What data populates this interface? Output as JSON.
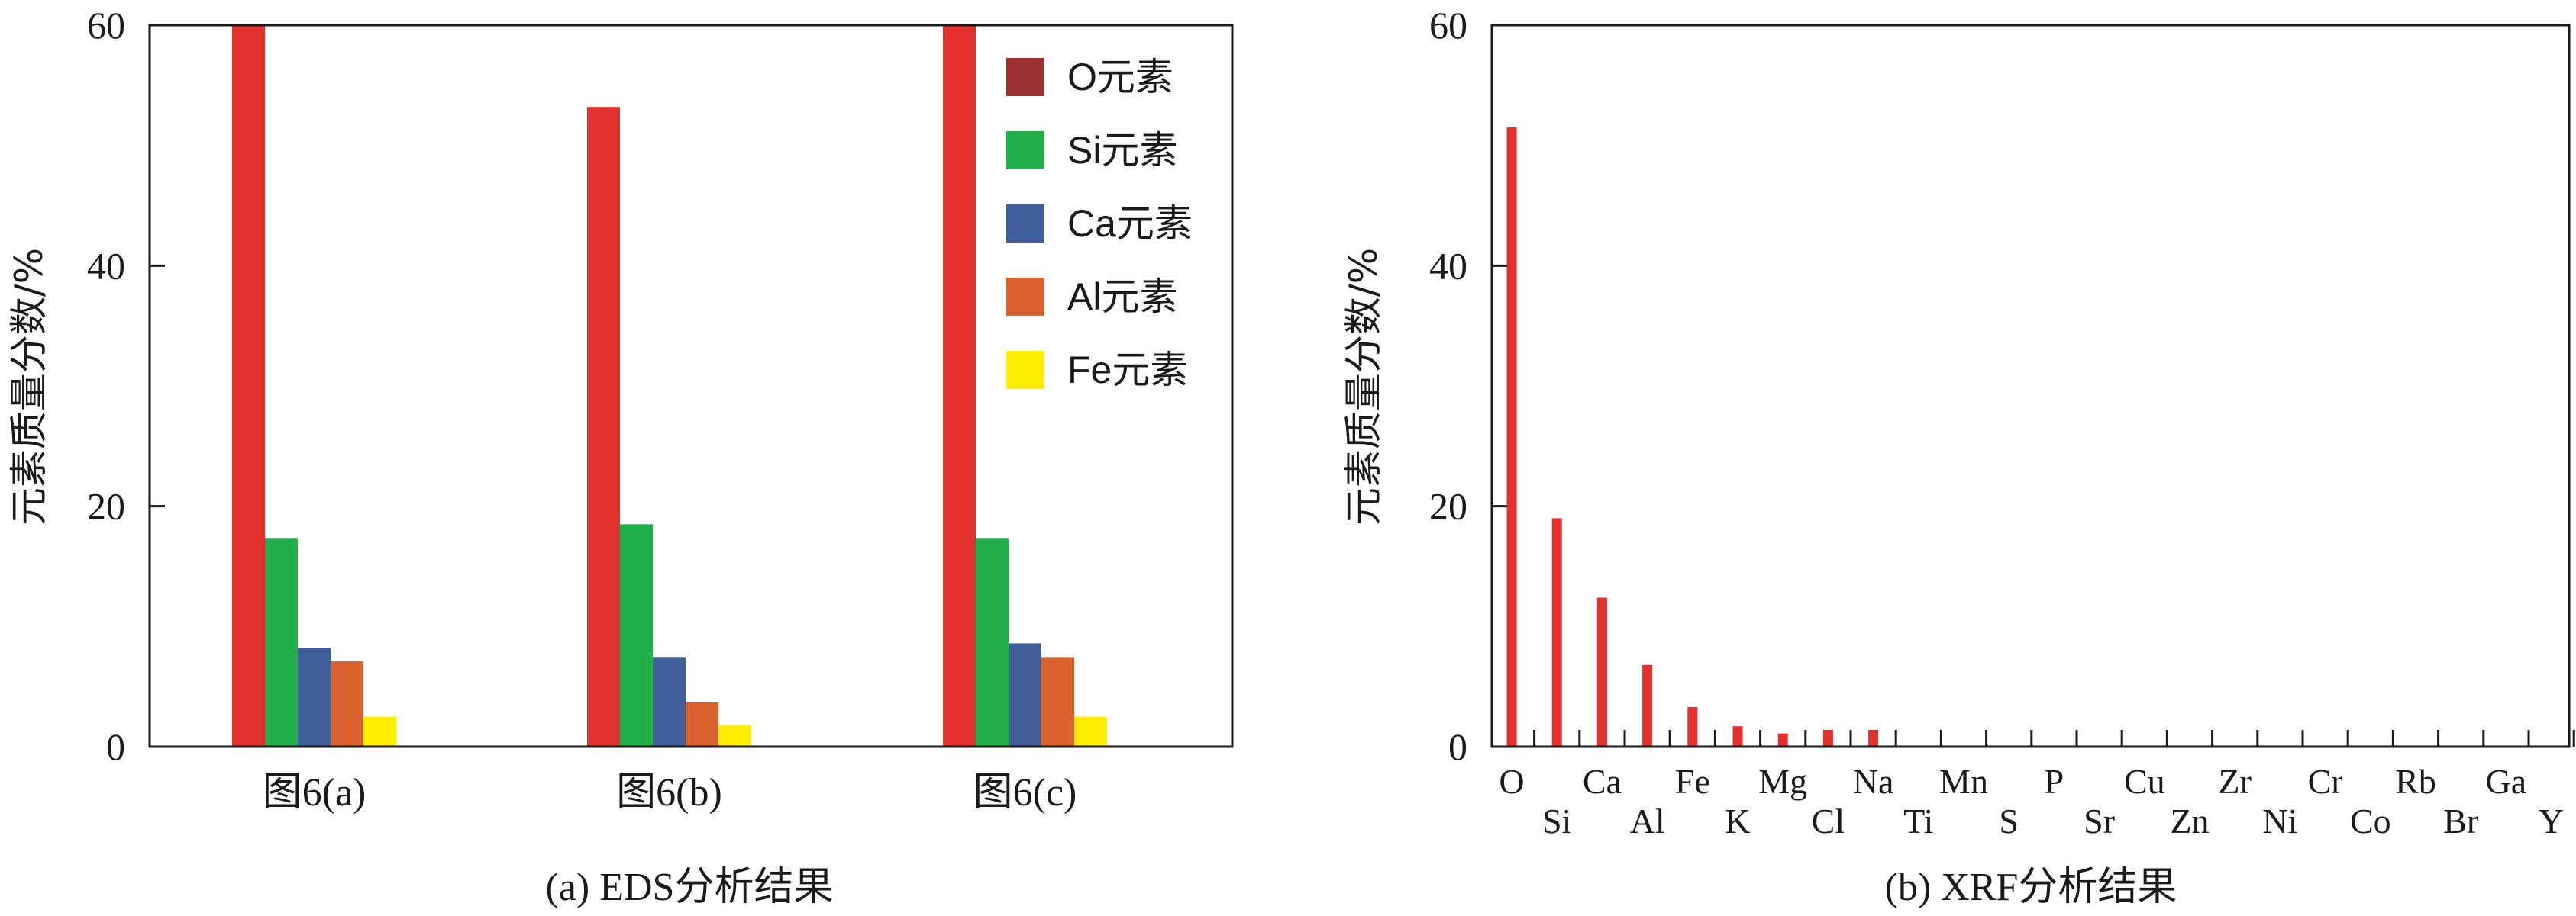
{
  "chart_data": [
    {
      "type": "bar",
      "caption": "(a) EDS分析结果",
      "ylabel": "元素质量分数/%",
      "ylim": [
        0,
        60
      ],
      "yticks": [
        "0",
        "20",
        "40",
        "60"
      ],
      "categories": [
        "图6(a)",
        "图6(b)",
        "图6(c)"
      ],
      "series": [
        {
          "name": "O元素",
          "legend_color": "#9b3030",
          "color": "#e2302c",
          "values": [
            60.0,
            53.2,
            60.0
          ]
        },
        {
          "name": "Si元素",
          "legend_color": "#22b04b",
          "color": "#22b04b",
          "values": [
            17.3,
            18.5,
            17.3
          ]
        },
        {
          "name": "Ca元素",
          "legend_color": "#3e5f9b",
          "color": "#3e5f9b",
          "values": [
            8.2,
            7.4,
            8.6
          ]
        },
        {
          "name": "Al元素",
          "legend_color": "#d9622e",
          "color": "#d9622e",
          "values": [
            7.1,
            3.7,
            7.4
          ]
        },
        {
          "name": "Fe元素",
          "legend_color": "#ffee00",
          "color": "#ffee00",
          "values": [
            2.5,
            1.8,
            2.5
          ]
        }
      ],
      "legend_position": "top-right"
    },
    {
      "type": "bar",
      "caption": "(b) XRF分析结果",
      "ylabel": "元素质量分数/%",
      "ylim": [
        0,
        60
      ],
      "yticks": [
        "0",
        "20",
        "40",
        "60"
      ],
      "color": "#e2302c",
      "categories": [
        "O",
        "Si",
        "Ca",
        "Al",
        "Fe",
        "K",
        "Mg",
        "Cl",
        "Na",
        "Ti",
        "Mn",
        "S",
        "P",
        "Sr",
        "Cu",
        "Zn",
        "Zr",
        "Ni",
        "Cr",
        "Co",
        "Rb",
        "Br",
        "Ga",
        "Y"
      ],
      "values": [
        51.5,
        19.0,
        12.4,
        6.8,
        3.3,
        1.7,
        1.1,
        1.4,
        1.4,
        0,
        0,
        0,
        0,
        0,
        0,
        0,
        0,
        0,
        0,
        0,
        0,
        0,
        0,
        0
      ]
    }
  ]
}
